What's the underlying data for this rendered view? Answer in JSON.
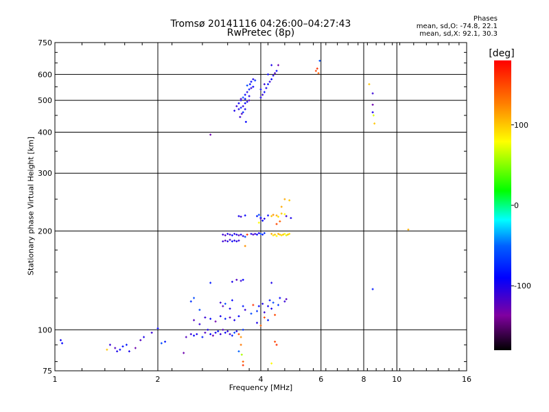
{
  "chart_data": {
    "type": "scatter",
    "title": "Tromsø 20141116 04:26:00–04:27:43",
    "subtitle": "RwPretec (8p)",
    "stats": {
      "heading": "Phases",
      "line_o": "mean, sd,O: -74.8, 22.1",
      "line_x": "mean, sd,X:  92.1, 30.3"
    },
    "xlabel": "Frequency [MHz]",
    "ylabel": "Stationary phase Virtual Height [km]",
    "x_scale": "log",
    "y_scale": "log",
    "xlim": [
      1,
      16
    ],
    "ylim": [
      75,
      750
    ],
    "x_ticks": [
      1,
      2,
      4,
      6,
      8,
      10,
      16
    ],
    "x_tick_labels": [
      "1",
      "2",
      "4",
      "6",
      "8",
      "10",
      "16"
    ],
    "y_ticks": [
      75,
      100,
      200,
      300,
      400,
      500,
      600,
      750
    ],
    "y_tick_labels": [
      "75",
      "100",
      "200",
      "300",
      "400",
      "500",
      "600",
      "750"
    ],
    "grid": true,
    "colorbar": {
      "label": "[deg]",
      "range": [
        -180,
        180
      ],
      "ticks": [
        100,
        0,
        -100
      ],
      "tick_labels": [
        "100",
        "0",
        "-100"
      ],
      "colors": [
        "#000000",
        "#8000a0",
        "#0000ff",
        "#0060ff",
        "#00ffff",
        "#00ff00",
        "#ffff00",
        "#ff8000",
        "#ff0000"
      ]
    },
    "points": [
      [
        1.04,
        93,
        -95
      ],
      [
        1.05,
        91,
        -90
      ],
      [
        1.42,
        87,
        100
      ],
      [
        1.45,
        90,
        -110
      ],
      [
        1.5,
        88,
        -120
      ],
      [
        1.52,
        86,
        -100
      ],
      [
        1.55,
        87,
        -90
      ],
      [
        1.58,
        89,
        -85
      ],
      [
        1.62,
        90,
        -80
      ],
      [
        1.65,
        86,
        -100
      ],
      [
        1.72,
        88,
        -130
      ],
      [
        1.78,
        93,
        -120
      ],
      [
        1.82,
        95,
        -100
      ],
      [
        1.92,
        98,
        -110
      ],
      [
        2.0,
        101,
        -90
      ],
      [
        2.05,
        91,
        -60
      ],
      [
        2.1,
        92,
        -80
      ],
      [
        2.38,
        85,
        -130
      ],
      [
        2.42,
        95,
        -120
      ],
      [
        2.5,
        97,
        -110
      ],
      [
        2.55,
        96,
        -90
      ],
      [
        2.6,
        97,
        -100
      ],
      [
        2.65,
        104,
        -110
      ],
      [
        2.7,
        95,
        -80
      ],
      [
        2.75,
        98,
        -120
      ],
      [
        2.8,
        100,
        -100
      ],
      [
        2.85,
        97,
        -90
      ],
      [
        2.9,
        96,
        -130
      ],
      [
        2.95,
        98,
        -100
      ],
      [
        3.0,
        99,
        -85
      ],
      [
        3.05,
        97,
        -110
      ],
      [
        3.1,
        100,
        -120
      ],
      [
        3.15,
        98,
        -95
      ],
      [
        3.2,
        99,
        -105
      ],
      [
        3.25,
        97,
        -115
      ],
      [
        3.3,
        96,
        -80
      ],
      [
        3.35,
        98,
        -60
      ],
      [
        3.4,
        99,
        -100
      ],
      [
        3.45,
        97,
        150
      ],
      [
        3.5,
        95,
        120
      ],
      [
        3.55,
        100,
        -70
      ],
      [
        3.45,
        86,
        -50
      ],
      [
        3.5,
        90,
        130
      ],
      [
        3.52,
        84,
        60
      ],
      [
        3.55,
        80,
        140
      ],
      [
        3.55,
        78,
        160
      ],
      [
        4.3,
        79,
        80
      ],
      [
        4.4,
        92,
        150
      ],
      [
        4.45,
        90,
        160
      ],
      [
        2.55,
        107,
        -120
      ],
      [
        2.65,
        115,
        -60
      ],
      [
        2.75,
        109,
        -110
      ],
      [
        2.85,
        108,
        -90
      ],
      [
        2.95,
        106,
        -130
      ],
      [
        3.05,
        110,
        -100
      ],
      [
        3.15,
        108,
        -80
      ],
      [
        3.25,
        109,
        -120
      ],
      [
        3.35,
        107,
        -100
      ],
      [
        3.45,
        110,
        -90
      ],
      [
        2.5,
        122,
        -70
      ],
      [
        2.55,
        125,
        -60
      ],
      [
        2.85,
        139,
        -80
      ],
      [
        3.05,
        121,
        -110
      ],
      [
        3.1,
        118,
        -120
      ],
      [
        3.15,
        120,
        -60
      ],
      [
        3.25,
        116,
        -100
      ],
      [
        3.3,
        123,
        -90
      ],
      [
        3.55,
        118,
        -80
      ],
      [
        3.6,
        115,
        -110
      ],
      [
        3.75,
        112,
        -60
      ],
      [
        3.8,
        119,
        160
      ],
      [
        3.9,
        114,
        -70
      ],
      [
        3.95,
        118,
        -90
      ],
      [
        4.05,
        120,
        -100
      ],
      [
        4.1,
        113,
        -110
      ],
      [
        4.2,
        118,
        -95
      ],
      [
        4.25,
        123,
        -85
      ],
      [
        4.3,
        116,
        -100
      ],
      [
        4.35,
        121,
        -60
      ],
      [
        4.4,
        111,
        150
      ],
      [
        4.5,
        119,
        -70
      ],
      [
        4.55,
        125,
        -90
      ],
      [
        4.7,
        122,
        -110
      ],
      [
        4.75,
        124,
        -120
      ],
      [
        3.9,
        105,
        -100
      ],
      [
        4.0,
        103,
        140
      ],
      [
        4.1,
        109,
        150
      ],
      [
        4.2,
        107,
        -80
      ],
      [
        3.3,
        140,
        -100
      ],
      [
        3.4,
        142,
        -120
      ],
      [
        3.5,
        141,
        -110
      ],
      [
        3.55,
        142,
        -90
      ],
      [
        4.3,
        139,
        -100
      ],
      [
        3.1,
        195,
        -110
      ],
      [
        3.15,
        194,
        -120
      ],
      [
        3.2,
        196,
        -100
      ],
      [
        3.25,
        195,
        -115
      ],
      [
        3.3,
        194,
        -90
      ],
      [
        3.35,
        196,
        -105
      ],
      [
        3.4,
        195,
        -100
      ],
      [
        3.45,
        194,
        -120
      ],
      [
        3.5,
        195,
        -95
      ],
      [
        3.55,
        193,
        -110
      ],
      [
        3.6,
        192,
        -60
      ],
      [
        3.65,
        195,
        160
      ],
      [
        3.1,
        186,
        -110
      ],
      [
        3.15,
        187,
        -120
      ],
      [
        3.2,
        186,
        -100
      ],
      [
        3.25,
        188,
        -115
      ],
      [
        3.3,
        186,
        -90
      ],
      [
        3.35,
        187,
        -105
      ],
      [
        3.4,
        186,
        -100
      ],
      [
        3.45,
        187,
        -110
      ],
      [
        3.6,
        180,
        120
      ],
      [
        3.75,
        196,
        -100
      ],
      [
        3.8,
        195,
        -120
      ],
      [
        3.85,
        196,
        -110
      ],
      [
        3.9,
        195,
        -90
      ],
      [
        3.95,
        197,
        -100
      ],
      [
        4.0,
        196,
        -60
      ],
      [
        4.05,
        195,
        -80
      ],
      [
        4.1,
        197,
        -70
      ],
      [
        4.3,
        196,
        110
      ],
      [
        4.35,
        194,
        90
      ],
      [
        4.4,
        195,
        100
      ],
      [
        4.45,
        193,
        80
      ],
      [
        4.5,
        196,
        110
      ],
      [
        4.55,
        195,
        100
      ],
      [
        4.6,
        194,
        90
      ],
      [
        4.65,
        195,
        100
      ],
      [
        4.7,
        196,
        80
      ],
      [
        4.75,
        194,
        70
      ],
      [
        4.8,
        195,
        100
      ],
      [
        4.85,
        196,
        90
      ],
      [
        3.45,
        222,
        -100
      ],
      [
        3.5,
        221,
        -110
      ],
      [
        3.6,
        223,
        -90
      ],
      [
        3.9,
        222,
        -80
      ],
      [
        3.95,
        224,
        -60
      ],
      [
        4.0,
        220,
        -70
      ],
      [
        4.05,
        215,
        -90
      ],
      [
        4.1,
        218,
        -100
      ],
      [
        3.95,
        212,
        80
      ],
      [
        4.0,
        218,
        -120
      ],
      [
        4.2,
        223,
        -90
      ],
      [
        4.3,
        222,
        100
      ],
      [
        4.35,
        224,
        120
      ],
      [
        4.45,
        223,
        110
      ],
      [
        4.5,
        221,
        90
      ],
      [
        4.6,
        226,
        100
      ],
      [
        4.7,
        225,
        80
      ],
      [
        4.75,
        222,
        -110
      ],
      [
        4.9,
        219,
        -100
      ],
      [
        4.45,
        210,
        150
      ],
      [
        4.55,
        214,
        140
      ],
      [
        4.6,
        237,
        110
      ],
      [
        4.7,
        250,
        110
      ],
      [
        4.85,
        248,
        100
      ],
      [
        10.8,
        202,
        110
      ],
      [
        3.45,
        470,
        -100
      ],
      [
        3.5,
        475,
        -80
      ],
      [
        3.55,
        480,
        -110
      ],
      [
        3.6,
        490,
        -90
      ],
      [
        3.65,
        495,
        -100
      ],
      [
        3.7,
        500,
        -120
      ],
      [
        3.5,
        500,
        -100
      ],
      [
        3.55,
        510,
        -60
      ],
      [
        3.6,
        520,
        -90
      ],
      [
        3.65,
        530,
        -100
      ],
      [
        3.7,
        540,
        -80
      ],
      [
        3.75,
        545,
        -110
      ],
      [
        3.8,
        550,
        -90
      ],
      [
        3.55,
        460,
        -70
      ],
      [
        3.6,
        470,
        -100
      ],
      [
        3.4,
        480,
        -110
      ],
      [
        3.45,
        490,
        -95
      ],
      [
        3.5,
        505,
        -120
      ],
      [
        3.6,
        505,
        -90
      ],
      [
        3.7,
        515,
        -100
      ],
      [
        3.72,
        560,
        -80
      ],
      [
        3.75,
        570,
        -90
      ],
      [
        3.8,
        580,
        -100
      ],
      [
        3.85,
        575,
        -70
      ],
      [
        3.65,
        555,
        -60
      ],
      [
        3.62,
        430,
        -90
      ],
      [
        3.48,
        445,
        -110
      ],
      [
        3.52,
        455,
        -120
      ],
      [
        3.35,
        465,
        -100
      ],
      [
        2.85,
        393,
        -130
      ],
      [
        4.0,
        510,
        -100
      ],
      [
        4.05,
        520,
        -110
      ],
      [
        4.1,
        530,
        -90
      ],
      [
        4.15,
        545,
        -100
      ],
      [
        4.2,
        560,
        -80
      ],
      [
        4.25,
        570,
        -110
      ],
      [
        4.3,
        580,
        -90
      ],
      [
        4.35,
        595,
        -100
      ],
      [
        4.4,
        605,
        -120
      ],
      [
        4.45,
        615,
        -90
      ],
      [
        4.5,
        640,
        -130
      ],
      [
        4.3,
        640,
        -100
      ],
      [
        4.2,
        600,
        -90
      ],
      [
        4.1,
        560,
        -110
      ],
      [
        4.0,
        540,
        -95
      ],
      [
        5.8,
        615,
        150
      ],
      [
        5.85,
        625,
        160
      ],
      [
        5.9,
        605,
        140
      ],
      [
        5.95,
        660,
        -60
      ],
      [
        8.3,
        560,
        100
      ],
      [
        8.5,
        525,
        -110
      ],
      [
        8.5,
        485,
        -130
      ],
      [
        8.5,
        460,
        -100
      ],
      [
        8.55,
        450,
        70
      ],
      [
        8.6,
        425,
        100
      ],
      [
        8.5,
        133,
        -80
      ]
    ]
  }
}
